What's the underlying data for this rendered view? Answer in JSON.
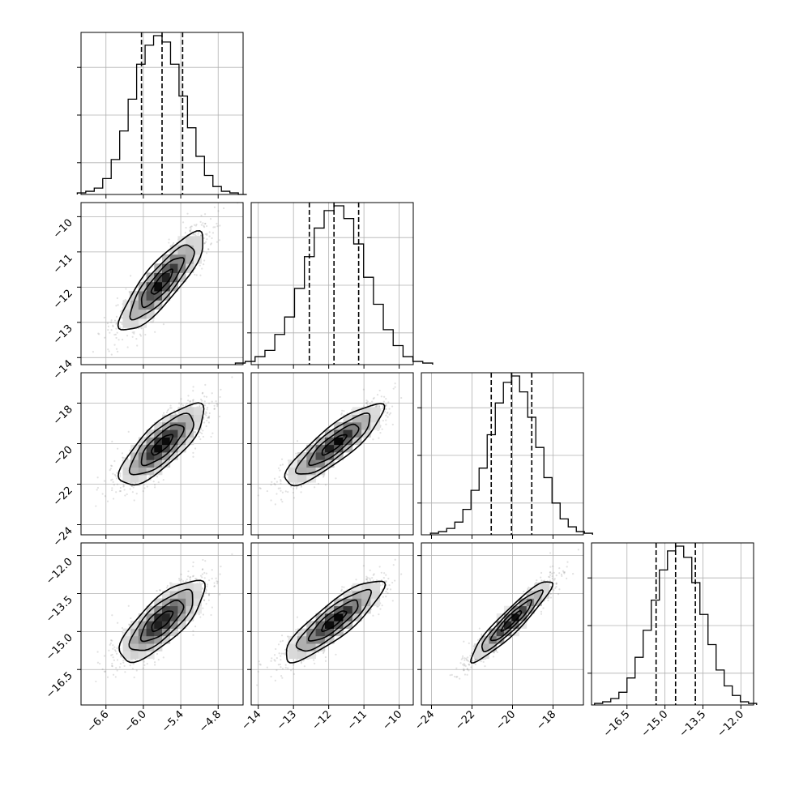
{
  "chart_data": {
    "type": "corner",
    "parameters": [
      {
        "index": 0,
        "range": [
          -7.0,
          -4.4
        ],
        "mean": -5.7,
        "sigma": 0.34,
        "quantiles": [
          -6.03,
          -5.7,
          -5.37
        ],
        "ticks": [
          -6.6,
          -6.0,
          -5.4,
          -4.8
        ],
        "tick_labels": [
          "−6.6",
          "−6.0",
          "−5.4",
          "−4.8"
        ]
      },
      {
        "index": 1,
        "range": [
          -14.2,
          -9.6
        ],
        "mean": -11.85,
        "sigma": 0.7,
        "quantiles": [
          -12.55,
          -11.85,
          -11.15
        ],
        "ticks": [
          -14,
          -13,
          -12,
          -11,
          -10
        ],
        "tick_labels": [
          "−14",
          "−13",
          "−12",
          "−11",
          "−10"
        ]
      },
      {
        "index": 2,
        "range": [
          -24.5,
          -16.5
        ],
        "mean": -20.05,
        "sigma": 1.0,
        "quantiles": [
          -21.05,
          -20.05,
          -19.05
        ],
        "ticks": [
          -24,
          -22,
          -20,
          -18
        ],
        "tick_labels": [
          "−24",
          "−22",
          "−20",
          "−18"
        ]
      },
      {
        "index": 3,
        "range": [
          -17.9,
          -11.5
        ],
        "mean": -14.58,
        "sigma": 0.8,
        "quantiles": [
          -15.35,
          -14.58,
          -13.8
        ],
        "ticks": [
          -16.5,
          -15.0,
          -13.5,
          -12.0
        ],
        "tick_labels": [
          "−16.5",
          "−15.0",
          "−13.5",
          "−12.0"
        ]
      }
    ],
    "correlations": {
      "0-1": 0.85,
      "0-2": 0.78,
      "0-3": 0.76,
      "1-2": 0.86,
      "1-3": 0.86,
      "2-3": 0.93
    },
    "histograms": {
      "bins": 20,
      "relative_counts": [
        [
          0.01,
          0.02,
          0.04,
          0.1,
          0.22,
          0.4,
          0.6,
          0.82,
          0.94,
          1.0,
          0.96,
          0.82,
          0.62,
          0.42,
          0.24,
          0.12,
          0.05,
          0.02,
          0.01,
          0.0
        ],
        [
          0.01,
          0.02,
          0.05,
          0.09,
          0.19,
          0.3,
          0.48,
          0.68,
          0.86,
          0.97,
          1.0,
          0.92,
          0.76,
          0.55,
          0.38,
          0.22,
          0.12,
          0.05,
          0.02,
          0.01
        ],
        [
          0.01,
          0.02,
          0.04,
          0.08,
          0.16,
          0.28,
          0.42,
          0.63,
          0.83,
          0.96,
          1.0,
          0.9,
          0.74,
          0.55,
          0.36,
          0.2,
          0.1,
          0.05,
          0.02,
          0.01
        ],
        [
          0.01,
          0.02,
          0.04,
          0.08,
          0.17,
          0.3,
          0.47,
          0.66,
          0.85,
          0.97,
          1.0,
          0.93,
          0.77,
          0.57,
          0.38,
          0.22,
          0.12,
          0.06,
          0.02,
          0.01
        ]
      ]
    },
    "contour_levels_sigma": [
      0.5,
      1.0,
      1.5,
      2.0
    ],
    "gridlines": true
  }
}
